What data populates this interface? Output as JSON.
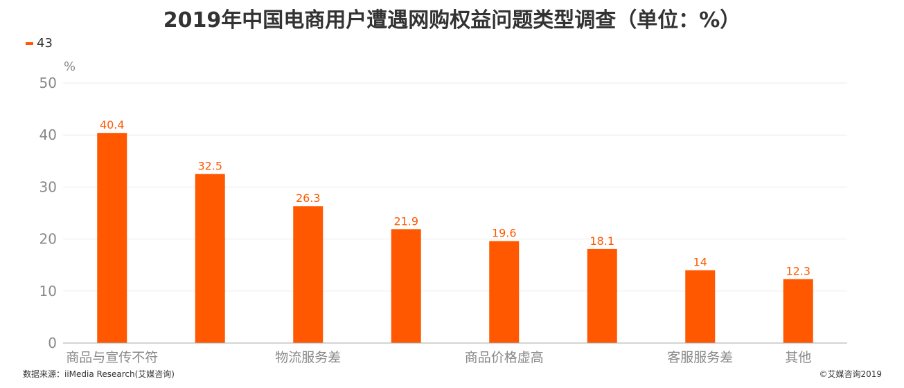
{
  "title": "2019年中国电商用户遭遇网购权益问题类型调查（单位：%）",
  "legend": {
    "label": "43",
    "color": "#FF5800"
  },
  "unit": "%",
  "source": "数据来源：iiMedia Research(艾媒咨询)",
  "copyright": "©艾媒咨询2019",
  "chart_data": {
    "type": "bar",
    "title": "2019年中国电商用户遭遇网购权益问题类型调查（单位：%）",
    "ylabel": "%",
    "ylim": [
      0,
      50
    ],
    "yticks": [
      0,
      10,
      20,
      30,
      40,
      50
    ],
    "grid": true,
    "legend_position": "top-left",
    "categories": [
      "商品与宣传不符",
      "",
      "物流服务差",
      "",
      "商品价格虚高",
      "",
      "客服服务差",
      "其他"
    ],
    "series": [
      {
        "name": "43",
        "color": "#FF5800",
        "values": [
          40.4,
          32.5,
          26.3,
          21.9,
          19.6,
          18.1,
          14,
          12.3
        ]
      }
    ]
  }
}
